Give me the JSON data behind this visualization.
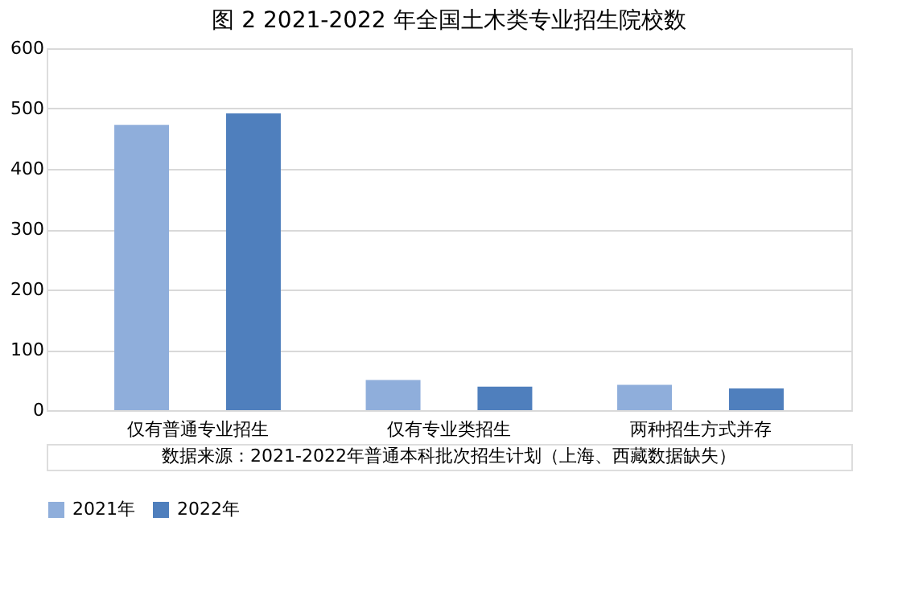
{
  "chart_data": {
    "type": "bar",
    "title": "图 2 2021-2022 年全国土木类专业招生院校数",
    "categories": [
      "仅有普通专业招生",
      "仅有专业类招生",
      "两种招生方式并存"
    ],
    "series": [
      {
        "name": "2021年",
        "color": "#8faedb",
        "values": [
          473,
          50,
          42
        ]
      },
      {
        "name": "2022年",
        "color": "#4f7fbd",
        "values": [
          492,
          39,
          36
        ]
      }
    ],
    "ylim": [
      0,
      600
    ],
    "yticks": [
      0,
      100,
      200,
      300,
      400,
      500,
      600
    ],
    "grid": "y",
    "legend": "bottom",
    "annotations": [
      "数据来源：2021-2022年普通本科批次招生计划（上海、西藏数据缺失）"
    ]
  }
}
